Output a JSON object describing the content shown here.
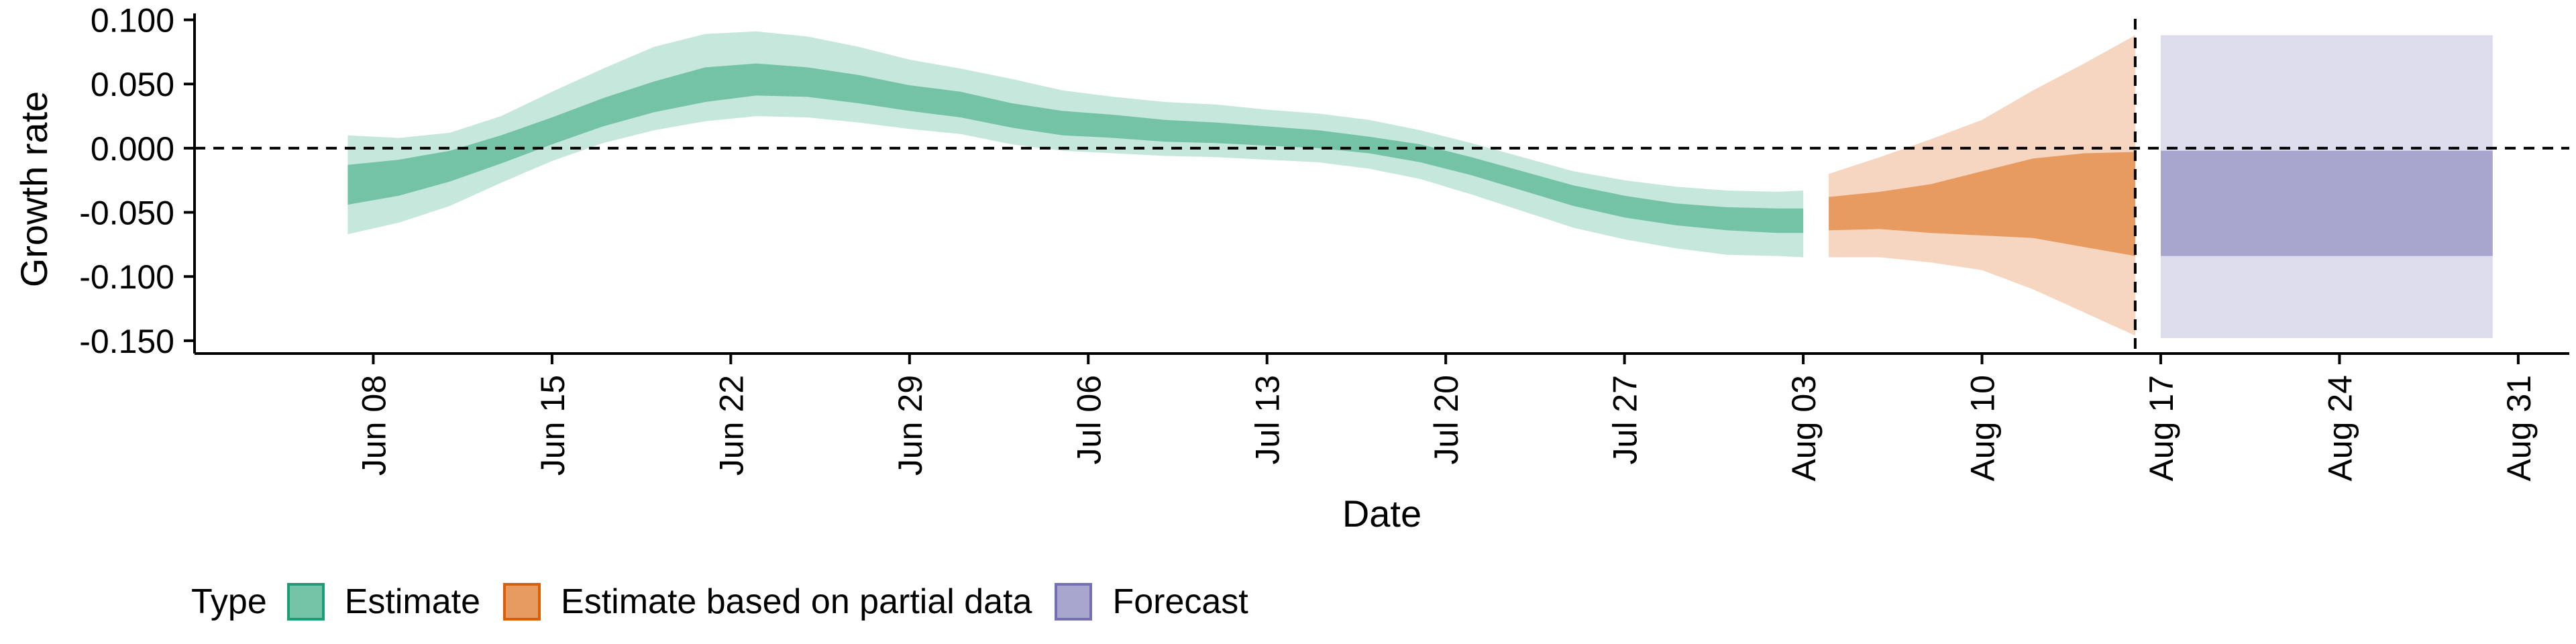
{
  "chart_data": {
    "type": "area",
    "xlabel": "Date",
    "ylabel": "Growth rate",
    "ylim": [
      -0.16,
      0.105
    ],
    "y_ticks": [
      0.1,
      0.05,
      0.0,
      -0.05,
      -0.1,
      -0.15
    ],
    "y_tick_labels": [
      "0.100",
      "0.050",
      "0.000",
      "-0.050",
      "-0.100",
      "-0.150"
    ],
    "xlim": [
      "2020-06-01",
      "2020-09-02"
    ],
    "x_ticks": [
      "2020-06-08",
      "2020-06-15",
      "2020-06-22",
      "2020-06-29",
      "2020-07-06",
      "2020-07-13",
      "2020-07-20",
      "2020-07-27",
      "2020-08-03",
      "2020-08-10",
      "2020-08-17",
      "2020-08-24",
      "2020-08-31"
    ],
    "x_tick_labels": [
      "Jun 08",
      "Jun 15",
      "Jun 22",
      "Jun 29",
      "Jul 06",
      "Jul 13",
      "Jul 20",
      "Jul 27",
      "Aug 03",
      "Aug 10",
      "Aug 17",
      "Aug 24",
      "Aug 31"
    ],
    "reference_lines": {
      "horizontal_y": 0.0,
      "vertical_x": "2020-08-16"
    },
    "legend": {
      "title": "Type",
      "position": "bottom-left",
      "entries": [
        {
          "label": "Estimate",
          "fill": "#74c3a6",
          "border": "#1b9e77"
        },
        {
          "label": "Estimate based on partial data",
          "fill": "#e89b61",
          "border": "#d95f02"
        },
        {
          "label": "Forecast",
          "fill": "#a8a6cf",
          "border": "#7570b3"
        }
      ]
    },
    "series": [
      {
        "name": "Estimate",
        "inner_color": "#74c3a6",
        "outer_color": "#c6e7dc",
        "points": [
          {
            "x": "2020-06-07",
            "lo90": -0.067,
            "lo50": -0.044,
            "hi50": -0.013,
            "hi90": 0.01
          },
          {
            "x": "2020-06-09",
            "lo90": -0.058,
            "lo50": -0.037,
            "hi50": -0.009,
            "hi90": 0.008
          },
          {
            "x": "2020-06-11",
            "lo90": -0.045,
            "lo50": -0.026,
            "hi50": -0.002,
            "hi90": 0.012
          },
          {
            "x": "2020-06-13",
            "lo90": -0.027,
            "lo50": -0.012,
            "hi50": 0.01,
            "hi90": 0.025
          },
          {
            "x": "2020-06-15",
            "lo90": -0.01,
            "lo50": 0.003,
            "hi50": 0.024,
            "hi90": 0.044
          },
          {
            "x": "2020-06-17",
            "lo90": 0.004,
            "lo50": 0.017,
            "hi50": 0.039,
            "hi90": 0.062
          },
          {
            "x": "2020-06-19",
            "lo90": 0.014,
            "lo50": 0.028,
            "hi50": 0.052,
            "hi90": 0.079
          },
          {
            "x": "2020-06-21",
            "lo90": 0.021,
            "lo50": 0.036,
            "hi50": 0.063,
            "hi90": 0.089
          },
          {
            "x": "2020-06-23",
            "lo90": 0.025,
            "lo50": 0.041,
            "hi50": 0.066,
            "hi90": 0.091
          },
          {
            "x": "2020-06-25",
            "lo90": 0.024,
            "lo50": 0.04,
            "hi50": 0.063,
            "hi90": 0.087
          },
          {
            "x": "2020-06-27",
            "lo90": 0.02,
            "lo50": 0.035,
            "hi50": 0.057,
            "hi90": 0.079
          },
          {
            "x": "2020-06-29",
            "lo90": 0.015,
            "lo50": 0.029,
            "hi50": 0.049,
            "hi90": 0.069
          },
          {
            "x": "2020-07-01",
            "lo90": 0.011,
            "lo50": 0.024,
            "hi50": 0.044,
            "hi90": 0.062
          },
          {
            "x": "2020-07-03",
            "lo90": 0.003,
            "lo50": 0.016,
            "hi50": 0.035,
            "hi90": 0.054
          },
          {
            "x": "2020-07-05",
            "lo90": -0.002,
            "lo50": 0.01,
            "hi50": 0.029,
            "hi90": 0.045
          },
          {
            "x": "2020-07-07",
            "lo90": -0.004,
            "lo50": 0.008,
            "hi50": 0.026,
            "hi90": 0.04
          },
          {
            "x": "2020-07-09",
            "lo90": -0.006,
            "lo50": 0.005,
            "hi50": 0.022,
            "hi90": 0.036
          },
          {
            "x": "2020-07-11",
            "lo90": -0.007,
            "lo50": 0.004,
            "hi50": 0.02,
            "hi90": 0.034
          },
          {
            "x": "2020-07-13",
            "lo90": -0.009,
            "lo50": 0.002,
            "hi50": 0.017,
            "hi90": 0.03
          },
          {
            "x": "2020-07-15",
            "lo90": -0.011,
            "lo50": 0.0,
            "hi50": 0.014,
            "hi90": 0.027
          },
          {
            "x": "2020-07-17",
            "lo90": -0.016,
            "lo50": -0.004,
            "hi50": 0.009,
            "hi90": 0.022
          },
          {
            "x": "2020-07-19",
            "lo90": -0.024,
            "lo50": -0.011,
            "hi50": 0.003,
            "hi90": 0.014
          },
          {
            "x": "2020-07-21",
            "lo90": -0.036,
            "lo50": -0.021,
            "hi50": -0.007,
            "hi90": 0.004
          },
          {
            "x": "2020-07-23",
            "lo90": -0.049,
            "lo50": -0.033,
            "hi50": -0.018,
            "hi90": -0.007
          },
          {
            "x": "2020-07-25",
            "lo90": -0.062,
            "lo50": -0.045,
            "hi50": -0.029,
            "hi90": -0.018
          },
          {
            "x": "2020-07-27",
            "lo90": -0.071,
            "lo50": -0.054,
            "hi50": -0.037,
            "hi90": -0.025
          },
          {
            "x": "2020-07-29",
            "lo90": -0.078,
            "lo50": -0.06,
            "hi50": -0.043,
            "hi90": -0.03
          },
          {
            "x": "2020-07-31",
            "lo90": -0.083,
            "lo50": -0.064,
            "hi50": -0.046,
            "hi90": -0.033
          },
          {
            "x": "2020-08-02",
            "lo90": -0.084,
            "lo50": -0.066,
            "hi50": -0.047,
            "hi90": -0.034
          },
          {
            "x": "2020-08-03",
            "lo90": -0.085,
            "lo50": -0.066,
            "hi50": -0.047,
            "hi90": -0.033
          }
        ]
      },
      {
        "name": "Estimate based on partial data",
        "inner_color": "#e89b61",
        "outer_color": "#f6d6c0",
        "points": [
          {
            "x": "2020-08-04",
            "lo90": -0.085,
            "lo50": -0.064,
            "hi50": -0.038,
            "hi90": -0.02
          },
          {
            "x": "2020-08-06",
            "lo90": -0.085,
            "lo50": -0.063,
            "hi50": -0.034,
            "hi90": -0.007
          },
          {
            "x": "2020-08-08",
            "lo90": -0.089,
            "lo50": -0.066,
            "hi50": -0.028,
            "hi90": 0.007
          },
          {
            "x": "2020-08-10",
            "lo90": -0.095,
            "lo50": -0.068,
            "hi50": -0.018,
            "hi90": 0.022
          },
          {
            "x": "2020-08-12",
            "lo90": -0.11,
            "lo50": -0.07,
            "hi50": -0.008,
            "hi90": 0.045
          },
          {
            "x": "2020-08-14",
            "lo90": -0.128,
            "lo50": -0.077,
            "hi50": -0.004,
            "hi90": 0.066
          },
          {
            "x": "2020-08-16",
            "lo90": -0.146,
            "lo50": -0.084,
            "hi50": -0.003,
            "hi90": 0.088
          }
        ]
      },
      {
        "name": "Forecast",
        "inner_color": "#a8a6cf",
        "outer_color": "#dcdcec",
        "points": [
          {
            "x": "2020-08-17",
            "lo90": -0.148,
            "lo50": -0.084,
            "hi50": -0.002,
            "hi90": 0.088
          },
          {
            "x": "2020-08-30",
            "lo90": -0.148,
            "lo50": -0.084,
            "hi50": -0.002,
            "hi90": 0.088
          }
        ]
      }
    ]
  }
}
